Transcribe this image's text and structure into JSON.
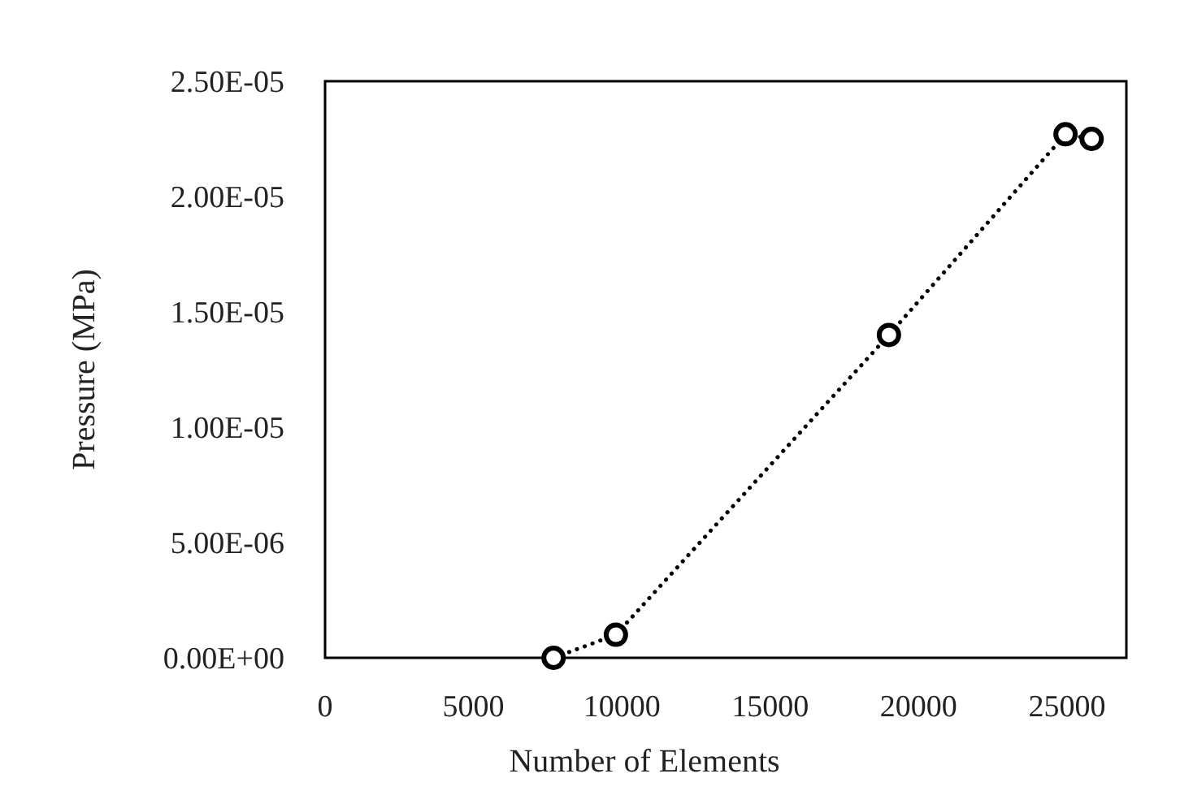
{
  "chart_data": {
    "type": "line",
    "xlabel": "Number of Elements",
    "ylabel": "Pressure (MPa)",
    "series": [
      {
        "color": "#000000",
        "x": [
          7700,
          9800,
          19000,
          24950,
          25830
        ],
        "values": [
          0,
          1e-06,
          1.4e-05,
          2.27e-05,
          2.25e-05
        ]
      }
    ],
    "xlim": [
      0,
      27000
    ],
    "xticks": [
      0,
      5000,
      10000,
      15000,
      20000,
      25000
    ],
    "ylim": [
      0,
      2.5e-05
    ],
    "yticks": [
      {
        "value": 0,
        "label": "0.00E+00"
      },
      {
        "value": 5e-06,
        "label": "5.00E-06"
      },
      {
        "value": 1e-05,
        "label": "1.00E-05"
      },
      {
        "value": 1.5e-05,
        "label": "1.50E-05"
      },
      {
        "value": 2e-05,
        "label": "2.00E-05"
      },
      {
        "value": 2.5e-05,
        "label": "2.50E-05"
      }
    ],
    "grid": false,
    "marker": "circle",
    "line_style": "dotted"
  }
}
